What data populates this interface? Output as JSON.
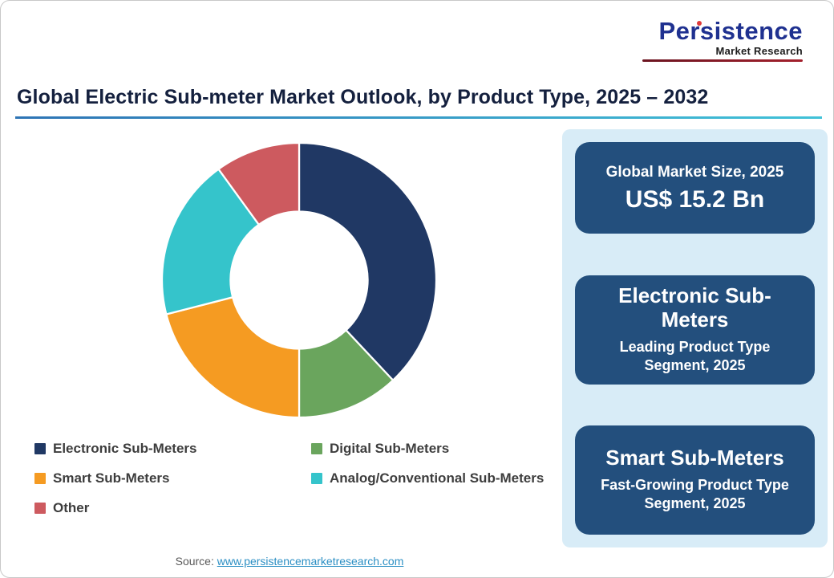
{
  "page": {
    "title": "Global Electric Sub-meter Market Outlook, by Product Type, 2025 – 2032",
    "source_label": "Source:",
    "source_link": "www.persistencemarketresearch.com"
  },
  "logo": {
    "name": "Persistence",
    "tagline": "Market Research",
    "accent_color": "#e03a3a",
    "name_color": "#1f3190"
  },
  "chart_data": {
    "type": "pie",
    "subtype": "donut",
    "title": "",
    "categories": [
      "Electronic Sub-Meters",
      "Digital Sub-Meters",
      "Smart Sub-Meters",
      "Analog/Conventional Sub-Meters",
      "Other"
    ],
    "values": [
      38,
      12,
      21,
      19,
      10
    ],
    "unit": "% share (estimated from segment angles; no data labels shown)",
    "colors": [
      "#203864",
      "#6aa55d",
      "#f59b22",
      "#35c4cb",
      "#cd5a5f"
    ],
    "start_angle": 0,
    "direction": "clockwise",
    "inner_radius_ratio": 0.5,
    "legend_position": "bottom"
  },
  "panel": {
    "background": "#d8ecf7",
    "card_color": "#234f7d",
    "cards": [
      {
        "title": "Global Market Size, 2025",
        "value": "US$ 15.2 Bn"
      },
      {
        "title": "Electronic Sub-Meters",
        "subtitle": "Leading Product Type Segment, 2025"
      },
      {
        "title": "Smart Sub-Meters",
        "subtitle": "Fast-Growing Product Type Segment, 2025"
      }
    ]
  }
}
